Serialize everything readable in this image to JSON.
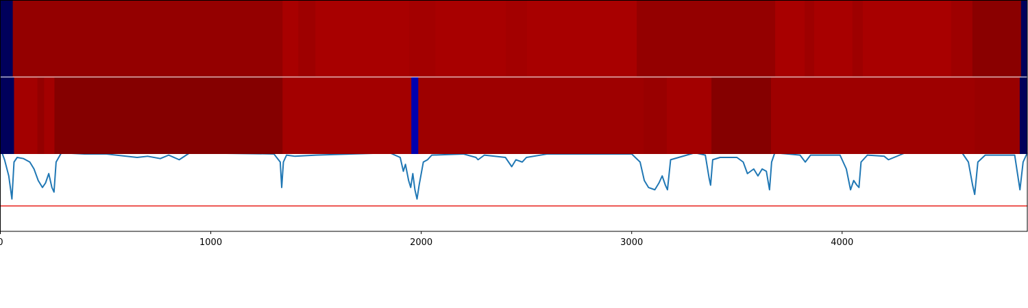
{
  "chart_data": {
    "type": "line",
    "color": "#1f77b4",
    "x": [
      0,
      20,
      40,
      55,
      65,
      80,
      110,
      140,
      160,
      180,
      200,
      215,
      230,
      245,
      255,
      265,
      290,
      400,
      500,
      650,
      700,
      760,
      800,
      850,
      900,
      1300,
      1330,
      1337,
      1345,
      1360,
      1400,
      1500,
      1850,
      1900,
      1915,
      1925,
      1940,
      1950,
      1960,
      1970,
      1980,
      1990,
      2010,
      2030,
      2050,
      2200,
      2260,
      2270,
      2300,
      2400,
      2430,
      2450,
      2480,
      2500,
      2600,
      3000,
      3040,
      3060,
      3080,
      3110,
      3130,
      3145,
      3160,
      3170,
      3185,
      3300,
      3350,
      3368,
      3375,
      3385,
      3420,
      3500,
      3530,
      3550,
      3580,
      3600,
      3620,
      3640,
      3655,
      3665,
      3680,
      3800,
      3825,
      3850,
      3990,
      4020,
      4040,
      4055,
      4070,
      4080,
      4090,
      4120,
      4200,
      4220,
      4300,
      4570,
      4600,
      4620,
      4630,
      4645,
      4680,
      4820,
      4845,
      4860,
      4880
    ],
    "values": [
      0.36,
      0.31,
      0.24,
      0.14,
      0.3,
      0.32,
      0.315,
      0.3,
      0.27,
      0.22,
      0.19,
      0.21,
      0.25,
      0.19,
      0.17,
      0.3,
      0.34,
      0.335,
      0.335,
      0.32,
      0.325,
      0.315,
      0.33,
      0.31,
      0.34,
      0.335,
      0.3,
      0.19,
      0.3,
      0.33,
      0.325,
      0.33,
      0.34,
      0.32,
      0.26,
      0.29,
      0.22,
      0.19,
      0.25,
      0.18,
      0.14,
      0.2,
      0.3,
      0.31,
      0.33,
      0.335,
      0.32,
      0.31,
      0.33,
      0.32,
      0.28,
      0.31,
      0.3,
      0.32,
      0.335,
      0.335,
      0.3,
      0.22,
      0.19,
      0.18,
      0.21,
      0.24,
      0.2,
      0.18,
      0.31,
      0.34,
      0.33,
      0.23,
      0.2,
      0.31,
      0.32,
      0.32,
      0.3,
      0.25,
      0.27,
      0.24,
      0.27,
      0.26,
      0.18,
      0.3,
      0.34,
      0.33,
      0.3,
      0.33,
      0.33,
      0.27,
      0.18,
      0.22,
      0.2,
      0.19,
      0.3,
      0.33,
      0.325,
      0.31,
      0.34,
      0.34,
      0.3,
      0.2,
      0.16,
      0.3,
      0.33,
      0.33,
      0.18,
      0.3,
      0.34
    ],
    "xlim": [
      0,
      4880
    ],
    "xticks": [
      0,
      1000,
      2000,
      3000,
      4000
    ],
    "ylim": [
      0,
      1
    ],
    "threshold": 0.11,
    "threshold_color": "#e8211c",
    "heatmap": {
      "colormap": "seismic",
      "strips": [
        {
          "segments": [
            {
              "start": 0,
              "end": 59,
              "value": 0.02
            },
            {
              "start": 59,
              "end": 1341,
              "value": 0.96
            },
            {
              "start": 1341,
              "end": 1416,
              "value": 0.92
            },
            {
              "start": 1416,
              "end": 1497,
              "value": 0.94
            },
            {
              "start": 1497,
              "end": 1943,
              "value": 0.92
            },
            {
              "start": 1943,
              "end": 2067,
              "value": 0.93
            },
            {
              "start": 2067,
              "end": 2402,
              "value": 0.92
            },
            {
              "start": 2402,
              "end": 2503,
              "value": 0.93
            },
            {
              "start": 2503,
              "end": 3024,
              "value": 0.92
            },
            {
              "start": 3024,
              "end": 3682,
              "value": 0.96
            },
            {
              "start": 3682,
              "end": 3822,
              "value": 0.92
            },
            {
              "start": 3822,
              "end": 3867,
              "value": 0.94
            },
            {
              "start": 3867,
              "end": 4049,
              "value": 0.92
            },
            {
              "start": 4049,
              "end": 4098,
              "value": 0.94
            },
            {
              "start": 4098,
              "end": 4518,
              "value": 0.92
            },
            {
              "start": 4518,
              "end": 4619,
              "value": 0.94
            },
            {
              "start": 4619,
              "end": 4850,
              "value": 0.98
            },
            {
              "start": 4850,
              "end": 4880,
              "value": 0.02
            }
          ]
        },
        {
          "segments": [
            {
              "start": 0,
              "end": 65,
              "value": 0.02
            },
            {
              "start": 65,
              "end": 176,
              "value": 0.93
            },
            {
              "start": 176,
              "end": 208,
              "value": 0.96
            },
            {
              "start": 208,
              "end": 257,
              "value": 0.93
            },
            {
              "start": 257,
              "end": 1341,
              "value": 0.99
            },
            {
              "start": 1341,
              "end": 1953,
              "value": 0.93
            },
            {
              "start": 1953,
              "end": 1986,
              "value": 0.14
            },
            {
              "start": 1986,
              "end": 3057,
              "value": 0.94
            },
            {
              "start": 3057,
              "end": 3167,
              "value": 0.95
            },
            {
              "start": 3167,
              "end": 3379,
              "value": 0.93
            },
            {
              "start": 3379,
              "end": 3662,
              "value": 0.99
            },
            {
              "start": 3662,
              "end": 4629,
              "value": 0.94
            },
            {
              "start": 4629,
              "end": 4844,
              "value": 0.95
            },
            {
              "start": 4844,
              "end": 4880,
              "value": 0.02
            }
          ]
        }
      ]
    }
  }
}
